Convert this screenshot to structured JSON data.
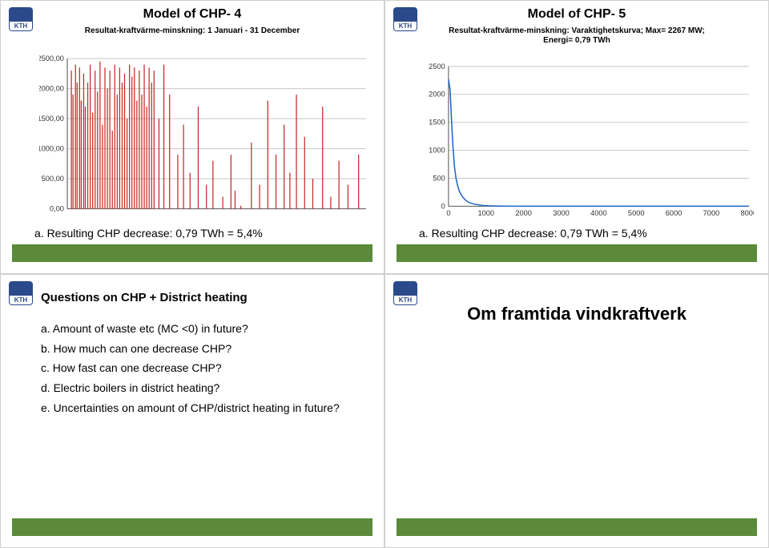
{
  "quad1": {
    "title": "Model of CHP- 4",
    "subtitle": "Resultat-kraftvärme-minskning: 1 Januari - 31 December",
    "title_fontsize": 16,
    "subtitle_fontsize": 10,
    "chart": {
      "type": "bar-like-spikes",
      "ylim": [
        0,
        2500
      ],
      "yticks": [
        0,
        500,
        1000,
        1500,
        2000,
        2500
      ],
      "ytick_labels": [
        "0,00",
        "500,00",
        "1000,00",
        "1500,00",
        "2000,00",
        "2500,00"
      ],
      "x_range": [
        0,
        365
      ],
      "series_color": "#c62828",
      "grid_color": "#c8c8c8",
      "background_color": "#ffffff",
      "spikes": [
        [
          5,
          2300
        ],
        [
          7,
          1900
        ],
        [
          10,
          2400
        ],
        [
          12,
          2100
        ],
        [
          15,
          2350
        ],
        [
          17,
          1800
        ],
        [
          20,
          2250
        ],
        [
          22,
          1700
        ],
        [
          25,
          2100
        ],
        [
          28,
          2400
        ],
        [
          31,
          1600
        ],
        [
          34,
          2300
        ],
        [
          37,
          1950
        ],
        [
          40,
          2450
        ],
        [
          43,
          1400
        ],
        [
          46,
          2350
        ],
        [
          49,
          2000
        ],
        [
          52,
          2300
        ],
        [
          55,
          1300
        ],
        [
          58,
          2400
        ],
        [
          61,
          1900
        ],
        [
          64,
          2350
        ],
        [
          67,
          2100
        ],
        [
          70,
          2250
        ],
        [
          73,
          1500
        ],
        [
          76,
          2400
        ],
        [
          79,
          2200
        ],
        [
          82,
          2350
        ],
        [
          85,
          1800
        ],
        [
          88,
          2300
        ],
        [
          91,
          1900
        ],
        [
          94,
          2400
        ],
        [
          97,
          1700
        ],
        [
          100,
          2350
        ],
        [
          103,
          2100
        ],
        [
          106,
          2300
        ],
        [
          112,
          1500
        ],
        [
          118,
          2400
        ],
        [
          125,
          1900
        ],
        [
          135,
          900
        ],
        [
          142,
          1400
        ],
        [
          150,
          600
        ],
        [
          160,
          1700
        ],
        [
          170,
          400
        ],
        [
          178,
          800
        ],
        [
          190,
          200
        ],
        [
          200,
          900
        ],
        [
          205,
          300
        ],
        [
          212,
          50
        ],
        [
          225,
          1100
        ],
        [
          235,
          400
        ],
        [
          245,
          1800
        ],
        [
          255,
          900
        ],
        [
          265,
          1400
        ],
        [
          272,
          600
        ],
        [
          280,
          1900
        ],
        [
          290,
          1200
        ],
        [
          300,
          500
        ],
        [
          312,
          1700
        ],
        [
          322,
          200
        ],
        [
          332,
          800
        ],
        [
          343,
          400
        ],
        [
          356,
          900
        ]
      ]
    },
    "caption": "a. Resulting CHP decrease: 0,79 TWh = 5,4%",
    "green_bar_color": "#5a8a3a"
  },
  "quad2": {
    "title": "Model of CHP- 5",
    "subtitle_line1": "Resultat-kraftvärme-minskning: Varaktighetskurva; Max= 2267 MW;",
    "subtitle_line2": "Energi= 0,79 TWh",
    "title_fontsize": 16,
    "subtitle_fontsize": 10,
    "chart": {
      "type": "line",
      "ylim": [
        0,
        2500
      ],
      "yticks": [
        0,
        500,
        1000,
        1500,
        2000,
        2500
      ],
      "ytick_labels": [
        "0",
        "500",
        "1000",
        "1500",
        "2000",
        "2500"
      ],
      "xlim": [
        0,
        8000
      ],
      "xticks": [
        0,
        1000,
        2000,
        3000,
        4000,
        5000,
        6000,
        7000,
        8000
      ],
      "series_color": "#1e66c8",
      "grid_color": "#c8c8c8",
      "line_width": 1.5,
      "points": [
        [
          0,
          2267
        ],
        [
          40,
          2100
        ],
        [
          80,
          1550
        ],
        [
          120,
          1050
        ],
        [
          160,
          700
        ],
        [
          200,
          500
        ],
        [
          250,
          350
        ],
        [
          300,
          250
        ],
        [
          370,
          170
        ],
        [
          450,
          110
        ],
        [
          550,
          65
        ],
        [
          700,
          35
        ],
        [
          900,
          15
        ],
        [
          1100,
          7
        ],
        [
          1300,
          3
        ],
        [
          1500,
          1
        ],
        [
          1800,
          0
        ],
        [
          8000,
          0
        ]
      ]
    },
    "caption": "a. Resulting CHP decrease: 0,79 TWh = 5,4%",
    "green_bar_color": "#5a8a3a"
  },
  "quad3": {
    "heading": "Questions on CHP + District heating",
    "heading_fontsize": 15,
    "items": [
      "a. Amount of waste etc (MC <0) in future?",
      "b. How much can one decrease CHP?",
      "c. How fast can one decrease CHP?",
      "d. Electric boilers in district heating?",
      "e. Uncertainties on amount of CHP/district heating in future?"
    ],
    "green_bar_color": "#5a8a3a"
  },
  "quad4": {
    "title": "Om framtida vindkraftverk",
    "title_fontsize": 22,
    "green_bar_color": "#5a8a3a"
  },
  "kth_label": "KTH"
}
